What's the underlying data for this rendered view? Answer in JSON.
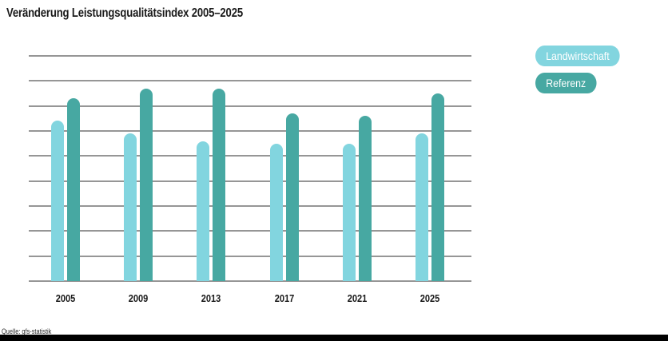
{
  "chart_data": {
    "type": "bar",
    "title": "Veränderung Leistungsqualitätsindex 2005–2025",
    "categories": [
      "2005",
      "2009",
      "2013",
      "2017",
      "2021",
      "2025"
    ],
    "series": [
      {
        "name": "Landwirtschaft",
        "color": "#82D5DF",
        "values": [
          64,
          59,
          56,
          55,
          55,
          59
        ]
      },
      {
        "name": "Referenz",
        "color": "#47A8A2",
        "values": [
          73,
          77,
          77,
          67,
          66,
          75
        ]
      }
    ],
    "xlabel": "",
    "ylabel": "",
    "ylim": [
      0,
      90
    ],
    "grid_interval": 10,
    "grid": "horizontal",
    "legend_position": "right"
  },
  "footer": {
    "source": "Quelle: gfs-statistik"
  },
  "colors": {
    "grid": "#969696",
    "title": "#1a1a1a",
    "axis_label": "#1a1a1a",
    "legend_text": "#ffffff",
    "bottom_bar": "#000000",
    "background": "#ffffff"
  }
}
